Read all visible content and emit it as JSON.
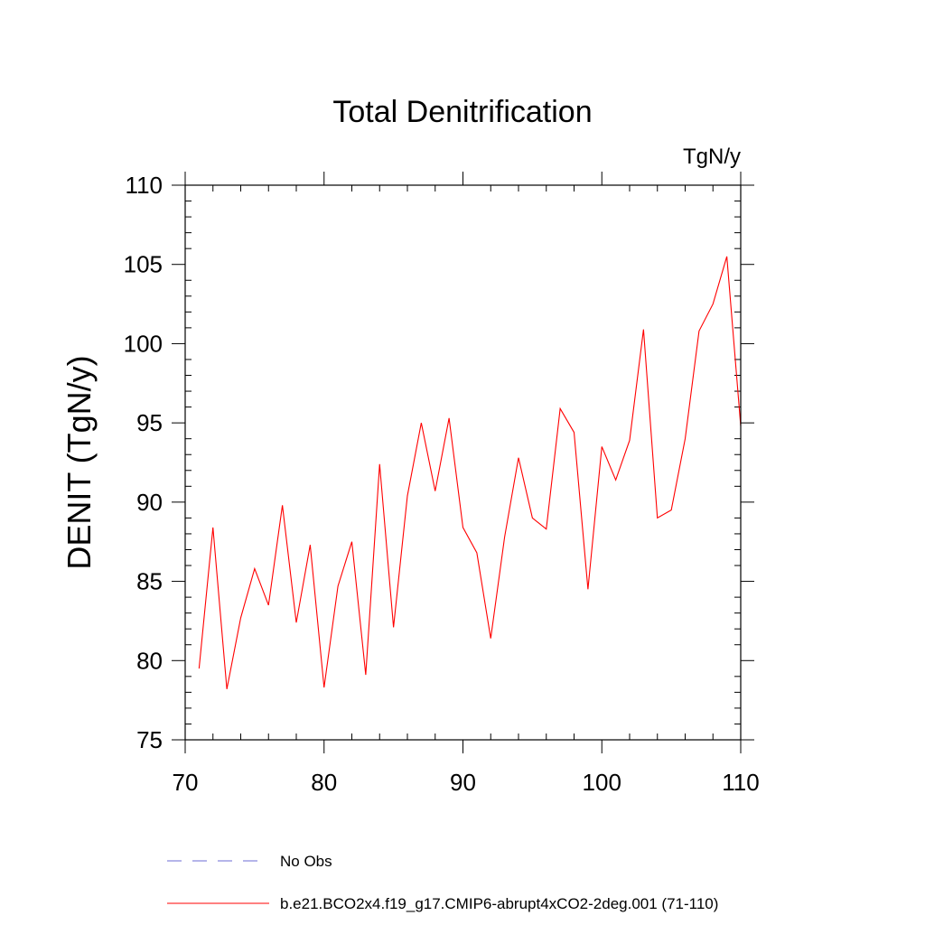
{
  "chart_data": {
    "type": "line",
    "title": "Total Denitrification",
    "units": "TgN/y",
    "ylabel": "DENIT  (TgN/y)",
    "xlabel": "",
    "xlim": [
      70,
      110
    ],
    "ylim": [
      75,
      110
    ],
    "x_ticks": [
      70,
      80,
      90,
      100,
      110
    ],
    "y_ticks": [
      75,
      80,
      85,
      90,
      95,
      100,
      105,
      110
    ],
    "grid": false,
    "legend_position": "bottom-left",
    "series": [
      {
        "name": "b.e21.BCO2x4.f19_g17.CMIP6-abrupt4xCO2-2deg.001 (71-110)",
        "color": "#ff0000",
        "style": "solid",
        "x": [
          71,
          72,
          73,
          74,
          75,
          76,
          77,
          78,
          79,
          80,
          81,
          82,
          83,
          84,
          85,
          86,
          87,
          88,
          89,
          90,
          91,
          92,
          93,
          94,
          95,
          96,
          97,
          98,
          99,
          100,
          101,
          102,
          103,
          104,
          105,
          106,
          107,
          108,
          109,
          110
        ],
        "values": [
          79.5,
          88.4,
          78.2,
          82.7,
          85.8,
          83.5,
          89.8,
          82.4,
          87.3,
          78.3,
          84.7,
          87.5,
          79.1,
          92.4,
          82.1,
          90.4,
          95.0,
          90.7,
          95.3,
          88.4,
          86.8,
          81.4,
          87.8,
          92.8,
          89.0,
          88.3,
          95.9,
          94.4,
          84.5,
          93.5,
          91.4,
          93.9,
          100.9,
          89.0,
          89.5,
          94.0,
          100.8,
          102.5,
          105.5,
          94.8
        ]
      },
      {
        "name": "No Obs",
        "color": "#6b6bd6",
        "style": "dashed",
        "x": [],
        "values": []
      }
    ]
  }
}
